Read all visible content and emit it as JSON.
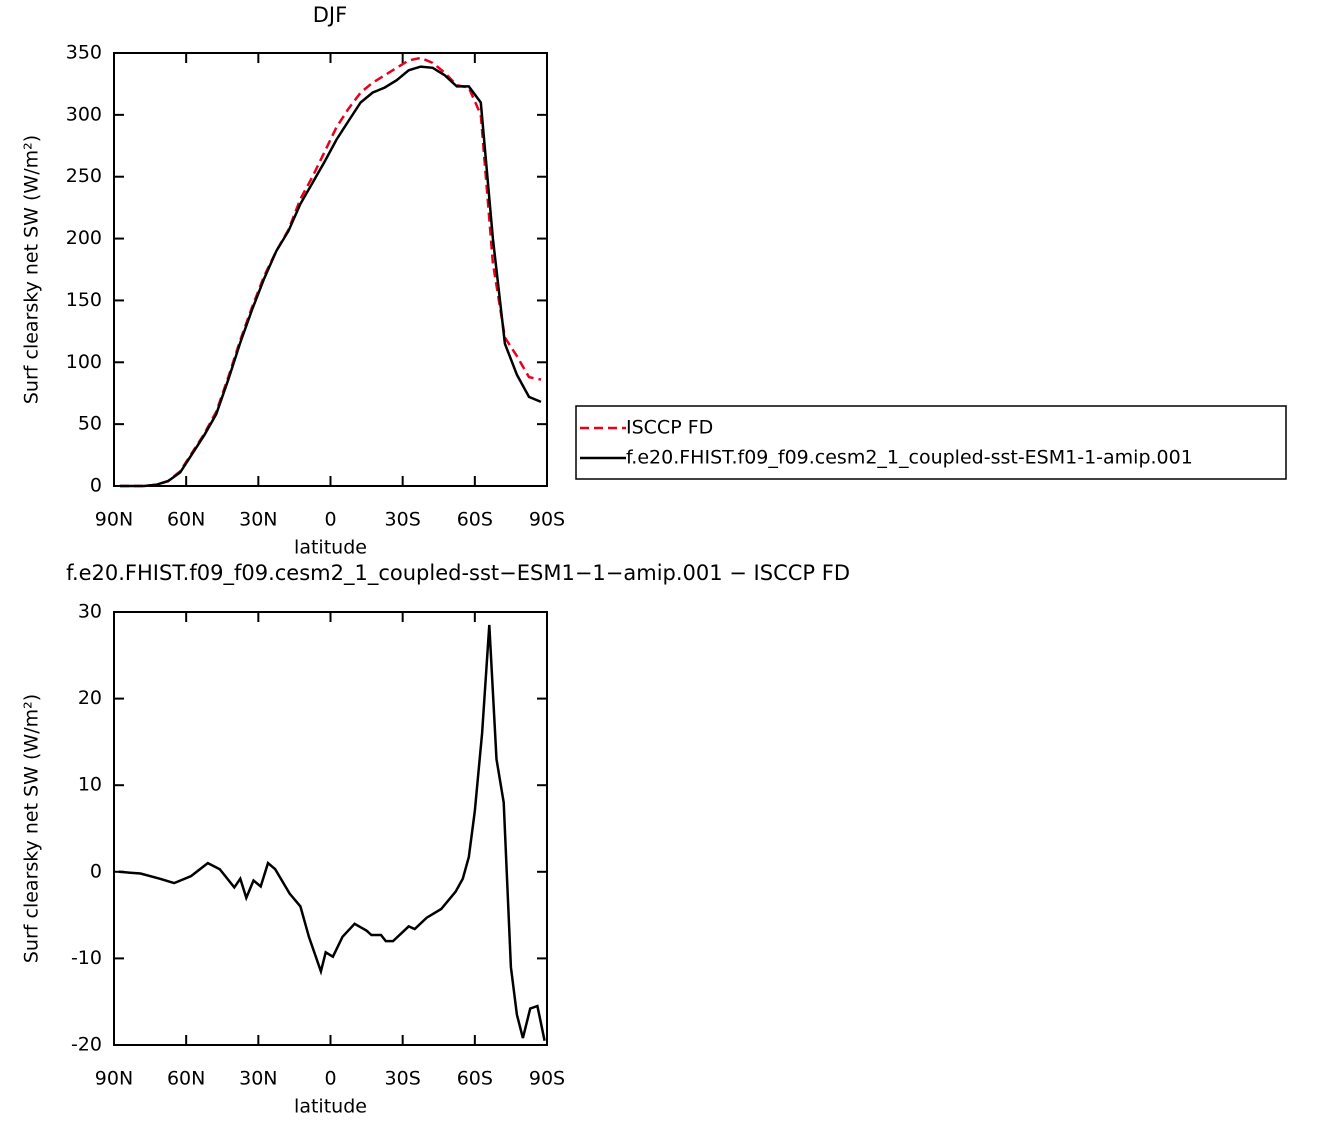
{
  "chart_data": [
    {
      "type": "line",
      "title": "DJF",
      "xlabel": "latitude",
      "ylabel": "Surf clearsky net SW (W/m²)",
      "x": [
        87.5,
        82.5,
        77.5,
        72.5,
        67.5,
        62.5,
        57.5,
        52.5,
        47.5,
        42.5,
        37.5,
        32.5,
        27.5,
        22.5,
        17.5,
        12.5,
        7.5,
        2.5,
        -2.5,
        -7.5,
        -12.5,
        -17.5,
        -22.5,
        -27.5,
        -32.5,
        -37.5,
        -42.5,
        -47.5,
        -52.5,
        -57.5,
        -62.5,
        -67.5,
        -72.5,
        -77.5,
        -82.5,
        -87.5
      ],
      "series": [
        {
          "name": "ISCCP FD",
          "color": "#e8001c",
          "linestyle": "dashed",
          "values": [
            0,
            0,
            0,
            1,
            4,
            12,
            27,
            42,
            60,
            88,
            118,
            145,
            170,
            190,
            207,
            232,
            250,
            270,
            290,
            305,
            318,
            326,
            332,
            338,
            344,
            346,
            342,
            334,
            324,
            322,
            300,
            180,
            120,
            105,
            88,
            86
          ]
        },
        {
          "name": "f.e20.FHIST.f09_f09.cesm2_1_coupled-sst-ESM1-1-amip.001",
          "color": "#000000",
          "linestyle": "solid",
          "values": [
            0,
            0,
            0,
            1,
            4,
            11,
            26,
            41,
            58,
            86,
            116,
            143,
            168,
            190,
            206,
            228,
            245,
            262,
            280,
            295,
            310,
            318,
            322,
            328,
            336,
            339,
            338,
            332,
            323,
            323,
            310,
            200,
            115,
            90,
            72,
            68
          ]
        }
      ],
      "xlim": [
        90,
        -90
      ],
      "xticks": [
        {
          "value": 90,
          "label": "90N"
        },
        {
          "value": 60,
          "label": "60N"
        },
        {
          "value": 30,
          "label": "30N"
        },
        0,
        {
          "value": -30,
          "label": "30S"
        },
        {
          "value": -60,
          "label": "60S"
        },
        {
          "value": -90,
          "label": "90S"
        }
      ],
      "ylim": [
        0,
        350
      ],
      "yticks": [
        0,
        50,
        100,
        150,
        200,
        250,
        300,
        350
      ],
      "legend": "right"
    },
    {
      "type": "line",
      "title": "f.e20.FHIST.f09_f09.cesm2_1_coupled-sst−ESM1−1−amip.001 − ISCCP FD",
      "xlabel": "latitude",
      "ylabel": "Surf clearsky net SW (W/m²)",
      "x": [
        88,
        79,
        71,
        65,
        58,
        51,
        46,
        40,
        37.5,
        35,
        32,
        29,
        26,
        23,
        17,
        12.5,
        9,
        4,
        2,
        -1,
        -5,
        -10,
        -15,
        -17,
        -21,
        -23,
        -26,
        -32.5,
        -35,
        -40,
        -46,
        -52,
        -55,
        -57.5,
        -60,
        -63,
        -66,
        -69,
        -72,
        -75,
        -77.5,
        -80,
        -83,
        -86,
        -89
      ],
      "values": [
        0,
        -0.2,
        -0.8,
        -1.3,
        -0.5,
        1.0,
        0.3,
        -1.8,
        -0.8,
        -3,
        -1,
        -1.7,
        1,
        0.3,
        -2.5,
        -4,
        -7.5,
        -11.5,
        -9.3,
        -9.8,
        -7.5,
        -6,
        -6.8,
        -7.3,
        -7.3,
        -8,
        -8,
        -6.3,
        -6.6,
        -5.3,
        -4.3,
        -2.3,
        -0.8,
        1.7,
        7,
        16,
        28.5,
        13,
        8,
        -11,
        -16.5,
        -19.2,
        -15.8,
        -15.5,
        -19.5
      ],
      "color": "#000000",
      "linestyle": "solid",
      "xlim": [
        90,
        -90
      ],
      "xticks": [
        {
          "value": 90,
          "label": "90N"
        },
        {
          "value": 60,
          "label": "60N"
        },
        {
          "value": 30,
          "label": "30N"
        },
        0,
        {
          "value": -30,
          "label": "30S"
        },
        {
          "value": -60,
          "label": "60S"
        },
        {
          "value": -90,
          "label": "90S"
        }
      ],
      "ylim": [
        -20,
        30
      ],
      "yticks": [
        -20,
        -10,
        0,
        10,
        20,
        30
      ]
    }
  ]
}
